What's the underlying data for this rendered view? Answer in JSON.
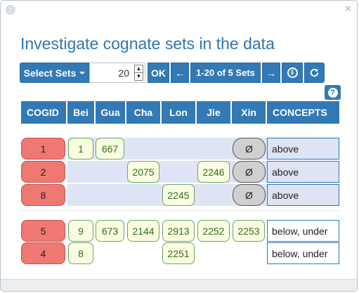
{
  "window": {
    "icon": "window-icon",
    "close_label": "×"
  },
  "title": "Investigate cognate sets in the data",
  "toolbar": {
    "select_sets_label": "Select Sets",
    "count_value": "20",
    "ok_label": "OK",
    "prev_label": "←",
    "range_label": "1-20 of 5 Sets",
    "next_label": "→",
    "download_icon": "download-icon",
    "refresh_icon": "refresh-icon",
    "help_label": "?"
  },
  "table": {
    "columns": [
      "COGID",
      "Bei",
      "Gua",
      "Cha",
      "Lon",
      "Jie",
      "Xin",
      "CONCEPTS"
    ],
    "empty_symbol": "Ø",
    "group1": [
      {
        "cogid": "1",
        "values": [
          "1",
          "667",
          "",
          "",
          "",
          "Ø"
        ],
        "concept": "above"
      },
      {
        "cogid": "2",
        "values": [
          "",
          "",
          "2075",
          "",
          "2246",
          "Ø"
        ],
        "concept": "above"
      },
      {
        "cogid": "8",
        "values": [
          "",
          "",
          "",
          "2245",
          "",
          "Ø"
        ],
        "concept": "above"
      }
    ],
    "group2": [
      {
        "cogid": "5",
        "values": [
          "9",
          "673",
          "2144",
          "2913",
          "2252",
          "2253"
        ],
        "concept": "below, under"
      },
      {
        "cogid": "4",
        "values": [
          "8",
          "",
          "",
          "2251",
          "",
          ""
        ],
        "concept": "below, under"
      }
    ]
  },
  "colors": {
    "accent": "#3279b5",
    "cogid_bg": "#f07872",
    "value_bg": "#fafde0",
    "value_border": "#6aa26a",
    "row_shade": "#dfe4f5"
  }
}
